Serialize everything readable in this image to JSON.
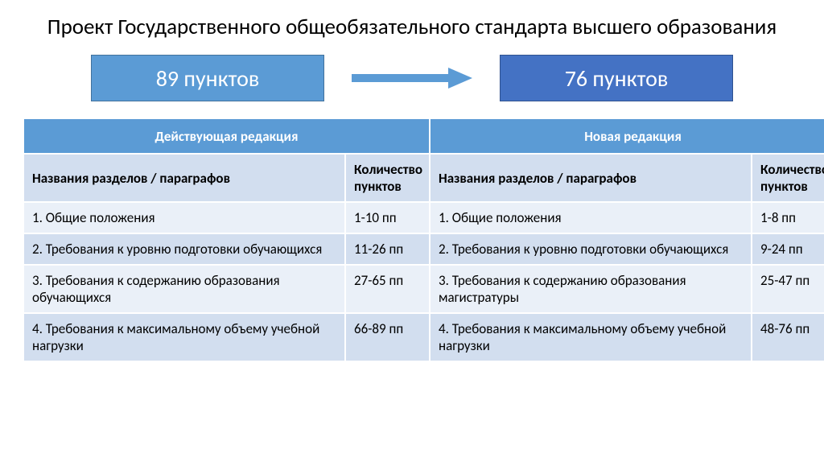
{
  "title": "Проект Государственного общеобязательного стандарта высшего образования",
  "boxes": {
    "left": {
      "label": "89 пунктов",
      "bg": "#5b9bd5",
      "border": "#41719c"
    },
    "right": {
      "label": "76 пунктов",
      "bg": "#4472c4",
      "border": "#2f528f"
    },
    "arrow_color": "#5b9bd5"
  },
  "table": {
    "header_bg": "#5b9bd5",
    "header_fg": "#ffffff",
    "subheader_bg": "#d2deef",
    "row_odd_bg": "#eaf0f8",
    "row_even_bg": "#d2deef",
    "super_headers": [
      "Действующая редакция",
      "Новая редакция"
    ],
    "columns": {
      "name_left": "Названия разделов / параграфов",
      "count_left": "Количество пунктов",
      "name_right": "Названия разделов / параграфов",
      "count_right": "Количество пунктов"
    },
    "rows": [
      {
        "name_left": "1. Общие положения",
        "count_left": "1-10 пп",
        "name_right": "1. Общие положения",
        "count_right": "1-8 пп",
        "justify": false
      },
      {
        "name_left": "2. Требования к уровню подготовки обучающихся",
        "count_left": "11-26 пп",
        "name_right": "2. Требования к уровню подготовки обучающихся",
        "count_right": "9-24 пп",
        "justify": true
      },
      {
        "name_left": "3. Требования к содержанию образования обучающихся",
        "count_left": "27-65 пп",
        "name_right": "3. Требования к содержанию образования магистратуры",
        "count_right": "25-47 пп",
        "justify": true
      },
      {
        "name_left": "4. Требования к максимальному объему учебной нагрузки",
        "count_left": "66-89 пп",
        "name_right": "4. Требования к максимальному объему учебной нагрузки",
        "count_right": "48-76 пп",
        "justify": true
      }
    ]
  }
}
